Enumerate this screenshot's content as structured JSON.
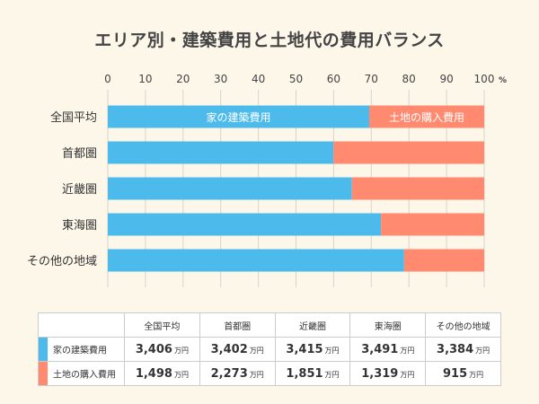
{
  "title": "エリア別・建築費用と土地代の費用バランス",
  "chart_data": {
    "type": "bar",
    "stacked": "percent",
    "orientation": "horizontal",
    "categories": [
      "全国平均",
      "首都圏",
      "近畿圏",
      "東海圏",
      "その他の地域"
    ],
    "series": [
      {
        "name": "家の建築費用",
        "values": [
          3406,
          3402,
          3415,
          3491,
          3384
        ],
        "color": "#4cbbec"
      },
      {
        "name": "土地の購入費用",
        "values": [
          1498,
          2273,
          1851,
          1319,
          915
        ],
        "color": "#ff8a70"
      }
    ],
    "xlim": [
      0,
      100
    ],
    "xticks": [
      0,
      10,
      20,
      30,
      40,
      50,
      60,
      70,
      80,
      90,
      100
    ],
    "unit_label": "%",
    "grid": true,
    "inbar_labels": {
      "category": "全国平均",
      "labels": [
        "家の建築費用",
        "土地の購入費用"
      ]
    }
  },
  "table": {
    "headers": [
      "全国平均",
      "首都圏",
      "近畿圏",
      "東海圏",
      "その他の地域"
    ],
    "unit": "万円",
    "rows": [
      {
        "label": "家の建築費用",
        "color": "#4cbbec",
        "values": [
          "3,406",
          "3,402",
          "3,415",
          "3,491",
          "3,384"
        ]
      },
      {
        "label": "土地の購入費用",
        "color": "#ff8a70",
        "values": [
          "1,498",
          "2,273",
          "1,851",
          "1,319",
          "915"
        ]
      }
    ]
  }
}
